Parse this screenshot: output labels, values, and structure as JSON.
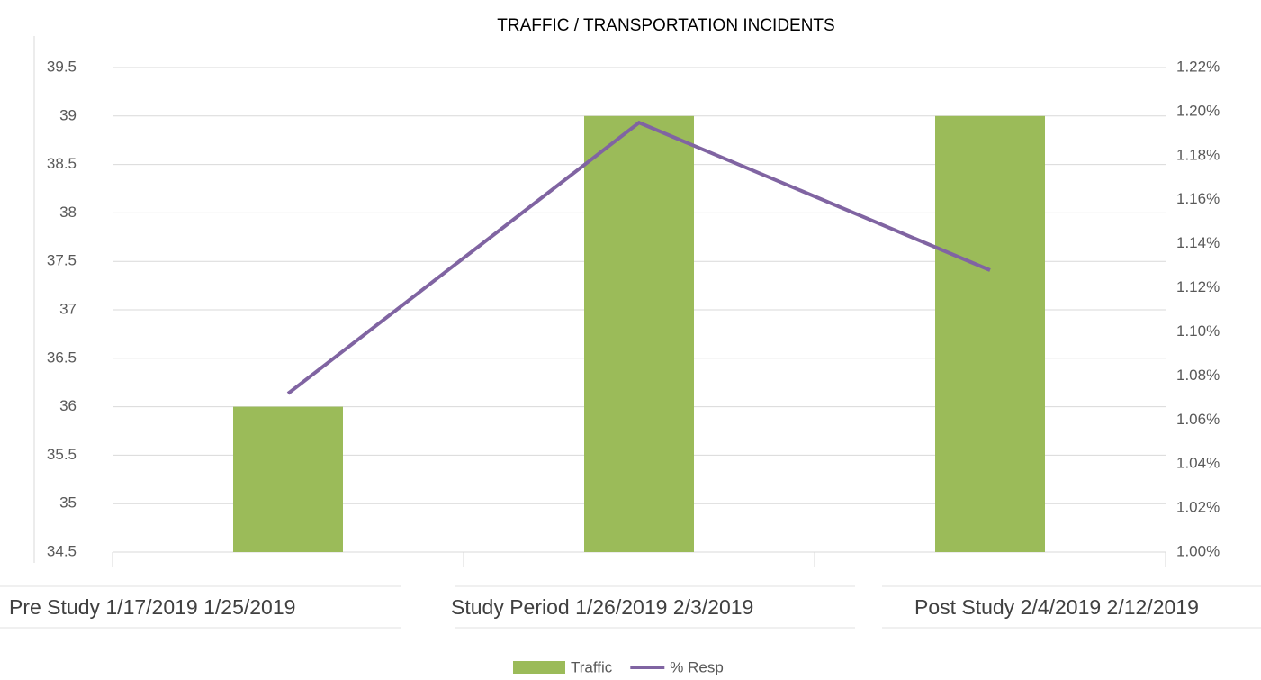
{
  "chart_data": {
    "type": "bar_line",
    "title": "TRAFFIC / TRANSPORTATION INCIDENTS",
    "categories": [
      "Pre Study 1/17/2019 1/25/2019",
      "Study Period 1/26/2019 2/3/2019",
      "Post Study 2/4/2019 2/12/2019"
    ],
    "series": [
      {
        "name": "Traffic",
        "type": "bar",
        "color": "#9bbb59",
        "values": [
          36,
          39,
          39
        ]
      },
      {
        "name": "% Resp",
        "type": "line",
        "color": "#8064a2",
        "axis": "y2",
        "values": [
          1.072,
          1.195,
          1.128
        ]
      }
    ],
    "ylim": [
      34.5,
      39.5
    ],
    "yticks": [
      34.5,
      35,
      35.5,
      36,
      36.5,
      37,
      37.5,
      38,
      38.5,
      39,
      39.5
    ],
    "y2lim": [
      1.0,
      1.22
    ],
    "y2ticks": [
      {
        "value": 1.0,
        "label": "1.00%"
      },
      {
        "value": 1.02,
        "label": "1.02%"
      },
      {
        "value": 1.04,
        "label": "1.04%"
      },
      {
        "value": 1.06,
        "label": "1.06%"
      },
      {
        "value": 1.08,
        "label": "1.08%"
      },
      {
        "value": 1.1,
        "label": "1.10%"
      },
      {
        "value": 1.12,
        "label": "1.12%"
      },
      {
        "value": 1.14,
        "label": "1.14%"
      },
      {
        "value": 1.16,
        "label": "1.16%"
      },
      {
        "value": 1.18,
        "label": "1.18%"
      },
      {
        "value": 1.2,
        "label": "1.20%"
      },
      {
        "value": 1.22,
        "label": "1.22%"
      }
    ],
    "grid": true,
    "legend": "bottom"
  }
}
